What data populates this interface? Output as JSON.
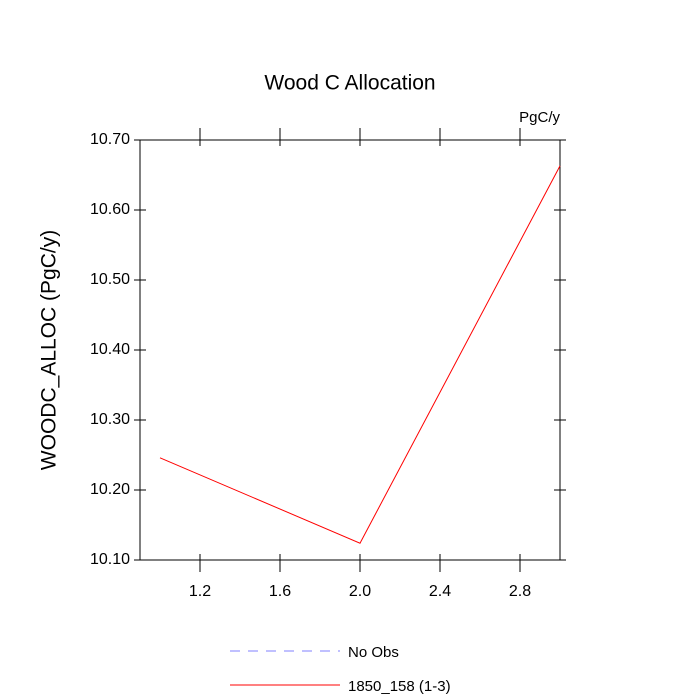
{
  "chart_data": {
    "type": "line",
    "title": "Wood C Allocation",
    "units_label": "PgC/y",
    "y_label": "WOODC_ALLOC  (PgC/y)",
    "x": [
      1.0,
      2.0,
      3.0
    ],
    "series": [
      {
        "name": "No Obs",
        "color": "#8080ff",
        "dashed": true,
        "values": [
          null,
          null,
          null
        ]
      },
      {
        "name": "1850_158 (1-3)",
        "color": "#ff0000",
        "dashed": false,
        "values": [
          10.246,
          10.124,
          10.663
        ]
      }
    ],
    "xlim": [
      0.9,
      3.0
    ],
    "xticks": [
      1.2,
      1.6,
      {
        "value": 2.0,
        "label": "2.0"
      },
      2.4,
      2.8
    ],
    "ylim": [
      10.1,
      10.7
    ],
    "yticks": [
      {
        "value": 10.1,
        "label": "10.10"
      },
      {
        "value": 10.2,
        "label": "10.20"
      },
      {
        "value": 10.3,
        "label": "10.30"
      },
      {
        "value": 10.4,
        "label": "10.40"
      },
      {
        "value": 10.5,
        "label": "10.50"
      },
      {
        "value": 10.6,
        "label": "10.60"
      },
      {
        "value": 10.7,
        "label": "10.70"
      }
    ]
  }
}
